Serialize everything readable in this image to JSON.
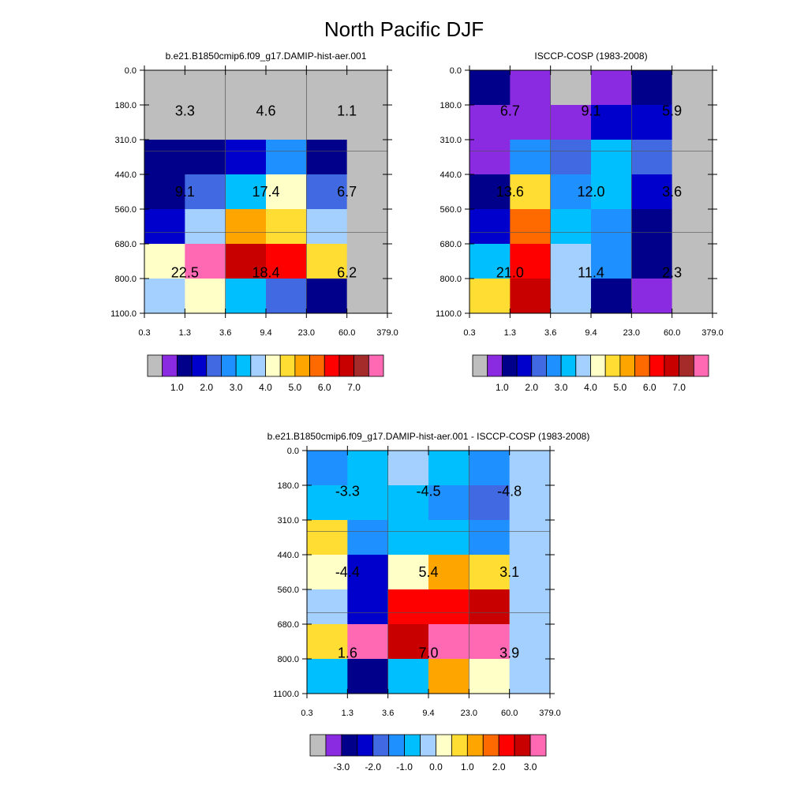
{
  "figure": {
    "title": "North Pacific DJF"
  },
  "chart_data": [
    {
      "type": "heatmap",
      "title": "b.e21.B1850cmip6.f09_g17.DAMIP-hist-aer.001",
      "x_ticks": [
        "0.3",
        "1.3",
        "3.6",
        "9.4",
        "23.0",
        "60.0",
        "379.0"
      ],
      "y_ticks": [
        "0.0",
        "180.0",
        "310.0",
        "440.0",
        "560.0",
        "680.0",
        "800.0",
        "1100.0"
      ],
      "cells": [
        [
          "#bebebe",
          "#bebebe",
          "#bebebe",
          "#bebebe",
          "#bebebe",
          "#bebebe"
        ],
        [
          "#bebebe",
          "#bebebe",
          "#bebebe",
          "#bebebe",
          "#bebebe",
          "#bebebe"
        ],
        [
          "#00008b",
          "#00008b",
          "#0000cd",
          "#1e90ff",
          "#00008b",
          "#bebebe"
        ],
        [
          "#00008b",
          "#4169e1",
          "#00bfff",
          "#ffffc8",
          "#4169e1",
          "#bebebe"
        ],
        [
          "#0000cd",
          "#a3d0ff",
          "#ffa500",
          "#ffdd33",
          "#a3d0ff",
          "#bebebe"
        ],
        [
          "#ffffc8",
          "#ff69b4",
          "#c80000",
          "#ff0000",
          "#ffdd33",
          "#bebebe"
        ],
        [
          "#a3d0ff",
          "#ffffc8",
          "#00bfff",
          "#4169e1",
          "#00008b",
          "#bebebe"
        ]
      ],
      "box_values": [
        {
          "col": 0,
          "row": 0,
          "value": "3.3"
        },
        {
          "col": 1,
          "row": 0,
          "value": "4.6"
        },
        {
          "col": 2,
          "row": 0,
          "value": "1.1"
        },
        {
          "col": 0,
          "row": 1,
          "value": "9.1"
        },
        {
          "col": 1,
          "row": 1,
          "value": "17.4"
        },
        {
          "col": 2,
          "row": 1,
          "value": "6.7"
        },
        {
          "col": 0,
          "row": 2,
          "value": "22.5"
        },
        {
          "col": 1,
          "row": 2,
          "value": "18.4"
        },
        {
          "col": 2,
          "row": 2,
          "value": "6.2"
        }
      ],
      "colorbar": {
        "colors": [
          "#bebebe",
          "#8a2be2",
          "#00008b",
          "#0000cd",
          "#4169e1",
          "#1e90ff",
          "#00bfff",
          "#a3d0ff",
          "#ffffc8",
          "#ffdd33",
          "#ffa500",
          "#ff6a00",
          "#ff0000",
          "#c80000",
          "#a52a2a",
          "#ff69b4"
        ],
        "labels": [
          "1.0",
          "2.0",
          "3.0",
          "4.0",
          "5.0",
          "6.0",
          "7.0"
        ]
      }
    },
    {
      "type": "heatmap",
      "title": "ISCCP-COSP (1983-2008)",
      "x_ticks": [
        "0.3",
        "1.3",
        "3.6",
        "9.4",
        "23.0",
        "60.0",
        "379.0"
      ],
      "y_ticks": [
        "0.0",
        "180.0",
        "310.0",
        "440.0",
        "560.0",
        "680.0",
        "800.0",
        "1100.0"
      ],
      "cells": [
        [
          "#00008b",
          "#8a2be2",
          "#bebebe",
          "#8a2be2",
          "#00008b",
          "#bebebe"
        ],
        [
          "#8a2be2",
          "#8a2be2",
          "#8a2be2",
          "#0000cd",
          "#0000cd",
          "#bebebe"
        ],
        [
          "#8a2be2",
          "#1e90ff",
          "#4169e1",
          "#00bfff",
          "#4169e1",
          "#bebebe"
        ],
        [
          "#00008b",
          "#ffdd33",
          "#1e90ff",
          "#00bfff",
          "#0000cd",
          "#bebebe"
        ],
        [
          "#0000cd",
          "#ff6a00",
          "#00bfff",
          "#1e90ff",
          "#00008b",
          "#bebebe"
        ],
        [
          "#00bfff",
          "#ff0000",
          "#a3d0ff",
          "#1e90ff",
          "#00008b",
          "#bebebe"
        ],
        [
          "#ffdd33",
          "#c80000",
          "#a3d0ff",
          "#00008b",
          "#8a2be2",
          "#bebebe"
        ]
      ],
      "box_values": [
        {
          "col": 0,
          "row": 0,
          "value": "6.7"
        },
        {
          "col": 1,
          "row": 0,
          "value": "9.1"
        },
        {
          "col": 2,
          "row": 0,
          "value": "5.9"
        },
        {
          "col": 0,
          "row": 1,
          "value": "13.6"
        },
        {
          "col": 1,
          "row": 1,
          "value": "12.0"
        },
        {
          "col": 2,
          "row": 1,
          "value": "3.6"
        },
        {
          "col": 0,
          "row": 2,
          "value": "21.0"
        },
        {
          "col": 1,
          "row": 2,
          "value": "11.4"
        },
        {
          "col": 2,
          "row": 2,
          "value": "2.3"
        }
      ],
      "colorbar": {
        "colors": [
          "#bebebe",
          "#8a2be2",
          "#00008b",
          "#0000cd",
          "#4169e1",
          "#1e90ff",
          "#00bfff",
          "#a3d0ff",
          "#ffffc8",
          "#ffdd33",
          "#ffa500",
          "#ff6a00",
          "#ff0000",
          "#c80000",
          "#a52a2a",
          "#ff69b4"
        ],
        "labels": [
          "1.0",
          "2.0",
          "3.0",
          "4.0",
          "5.0",
          "6.0",
          "7.0"
        ]
      }
    },
    {
      "type": "heatmap",
      "title": "b.e21.B1850cmip6.f09_g17.DAMIP-hist-aer.001 - ISCCP-COSP (1983-2008)",
      "x_ticks": [
        "0.3",
        "1.3",
        "3.6",
        "9.4",
        "23.0",
        "60.0",
        "379.0"
      ],
      "y_ticks": [
        "0.0",
        "180.0",
        "310.0",
        "440.0",
        "560.0",
        "680.0",
        "800.0",
        "1100.0"
      ],
      "cells": [
        [
          "#1e90ff",
          "#00bfff",
          "#a3d0ff",
          "#00bfff",
          "#1e90ff",
          "#a3d0ff"
        ],
        [
          "#00bfff",
          "#00bfff",
          "#00bfff",
          "#1e90ff",
          "#4169e1",
          "#a3d0ff"
        ],
        [
          "#ffdd33",
          "#1e90ff",
          "#00bfff",
          "#00bfff",
          "#1e90ff",
          "#a3d0ff"
        ],
        [
          "#ffffc8",
          "#0000cd",
          "#ffffc8",
          "#ffa500",
          "#ffdd33",
          "#a3d0ff"
        ],
        [
          "#a3d0ff",
          "#0000cd",
          "#ff0000",
          "#ff0000",
          "#c80000",
          "#a3d0ff"
        ],
        [
          "#ffdd33",
          "#ff69b4",
          "#c80000",
          "#ff69b4",
          "#ff69b4",
          "#a3d0ff"
        ],
        [
          "#00bfff",
          "#00008b",
          "#00bfff",
          "#ffa500",
          "#ffffc8",
          "#a3d0ff"
        ]
      ],
      "box_values": [
        {
          "col": 0,
          "row": 0,
          "value": "-3.3"
        },
        {
          "col": 1,
          "row": 0,
          "value": "-4.5"
        },
        {
          "col": 2,
          "row": 0,
          "value": "-4.8"
        },
        {
          "col": 0,
          "row": 1,
          "value": "-4.4"
        },
        {
          "col": 1,
          "row": 1,
          "value": "5.4"
        },
        {
          "col": 2,
          "row": 1,
          "value": "3.1"
        },
        {
          "col": 0,
          "row": 2,
          "value": "1.6"
        },
        {
          "col": 1,
          "row": 2,
          "value": "7.0"
        },
        {
          "col": 2,
          "row": 2,
          "value": "3.9"
        }
      ],
      "colorbar": {
        "colors": [
          "#bebebe",
          "#8a2be2",
          "#00008b",
          "#0000cd",
          "#4169e1",
          "#1e90ff",
          "#00bfff",
          "#a3d0ff",
          "#ffffc8",
          "#ffdd33",
          "#ffa500",
          "#ff6a00",
          "#ff0000",
          "#c80000",
          "#ff69b4"
        ],
        "labels": [
          "-3.0",
          "-2.0",
          "-1.0",
          "0.0",
          "1.0",
          "2.0",
          "3.0"
        ]
      }
    }
  ]
}
